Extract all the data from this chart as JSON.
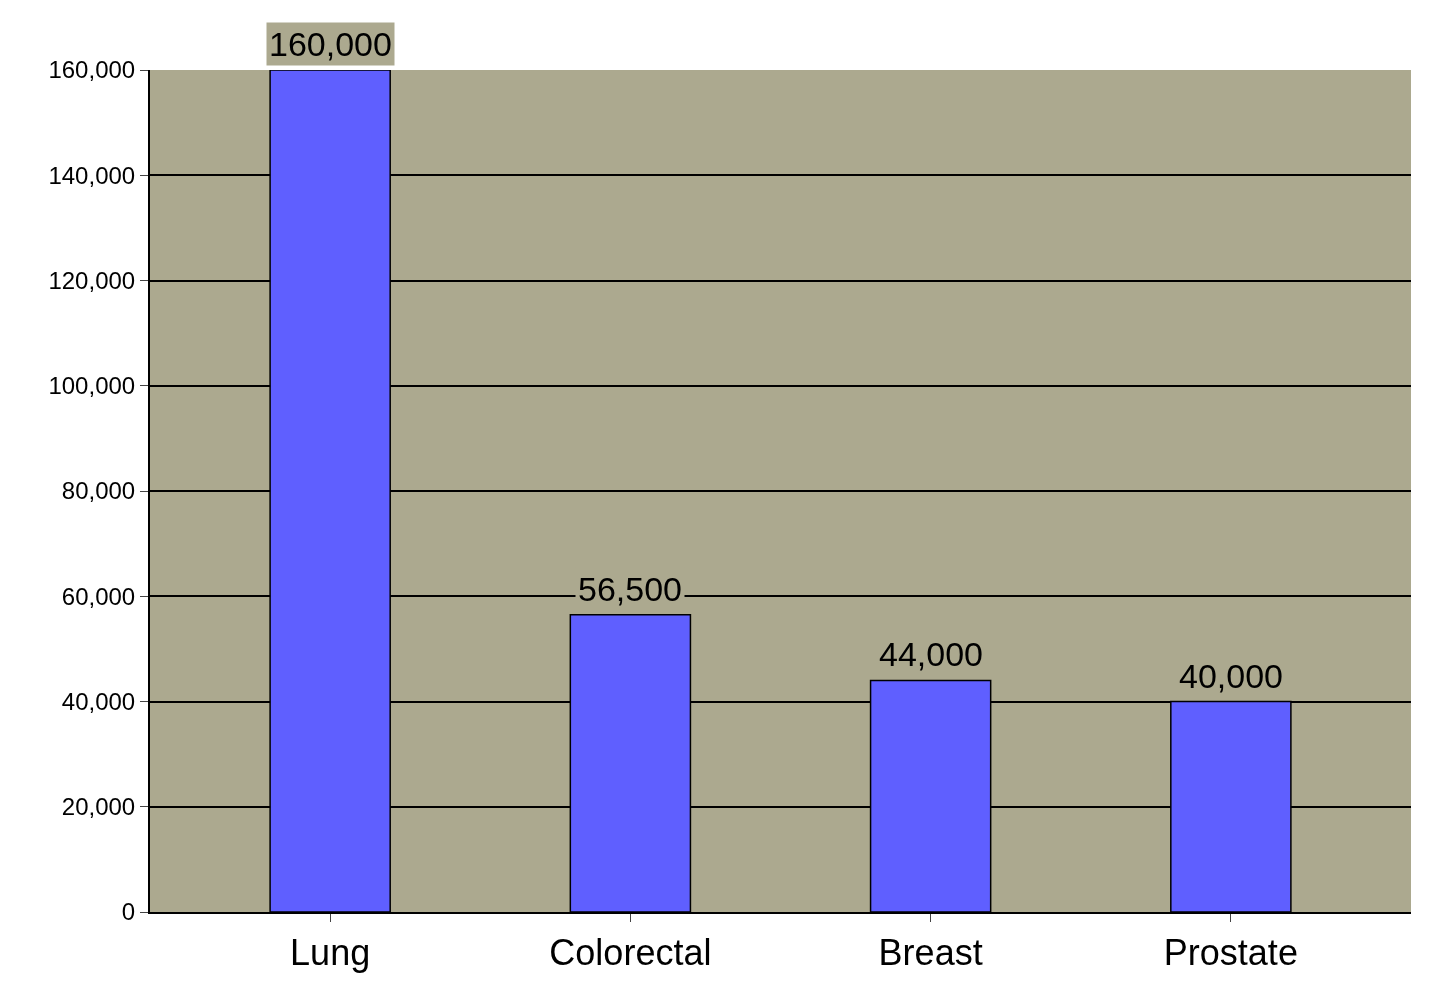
{
  "chart_data": {
    "type": "bar",
    "categories": [
      "Lung",
      "Colorectal",
      "Breast",
      "Prostate"
    ],
    "values": [
      160000,
      56500,
      44000,
      40000
    ],
    "value_labels": [
      "160,000",
      "56,500",
      "44,000",
      "40,000"
    ],
    "color": "#5f5fff",
    "ylim": [
      0,
      160000
    ],
    "yticks": [
      0,
      {
        "value": 20000,
        "label": "20,000"
      },
      {
        "value": 40000,
        "label": "40,000"
      },
      {
        "value": 60000,
        "label": "60,000"
      },
      {
        "value": 80000,
        "label": "80,000"
      },
      {
        "value": 100000,
        "label": "100,000"
      },
      {
        "value": 120000,
        "label": "120,000"
      },
      {
        "value": 140000,
        "label": "140,000"
      },
      {
        "value": 160000,
        "label": "160,000"
      }
    ],
    "grid": "y",
    "legend": false
  }
}
